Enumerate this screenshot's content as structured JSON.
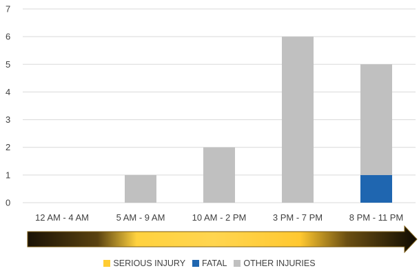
{
  "chart_data": {
    "type": "bar",
    "stacked": true,
    "categories": [
      "12 AM - 4 AM",
      "5 AM - 9 AM",
      "10 AM - 2 PM",
      "3 PM - 7 PM",
      "8 PM - 11 PM"
    ],
    "series": [
      {
        "name": "SERIOUS INJURY",
        "color": "#FFCC33",
        "values": [
          0,
          0,
          0,
          0,
          0
        ]
      },
      {
        "name": "FATAL",
        "color": "#1F66B0",
        "values": [
          0,
          0,
          0,
          0,
          1
        ]
      },
      {
        "name": "OTHER INJURIES",
        "color": "#C0C0C0",
        "values": [
          0,
          1,
          2,
          6,
          4
        ]
      }
    ],
    "ylim": [
      0,
      7
    ],
    "yticks": [
      0,
      1,
      2,
      3,
      4,
      5,
      6,
      7
    ],
    "grid": true,
    "legend_position": "bottom",
    "decoration": "gradient-arrow",
    "title": "",
    "xlabel": "",
    "ylabel": ""
  }
}
